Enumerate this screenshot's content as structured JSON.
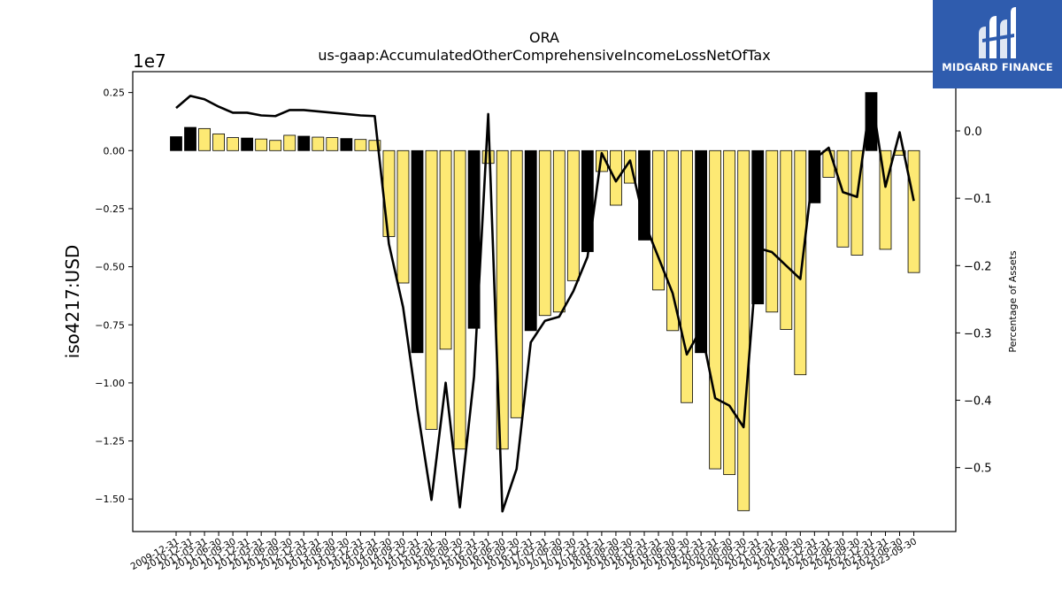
{
  "brand": {
    "name": "MIDGARD FINANCE"
  },
  "colors": {
    "bar_yellow": "#fde974",
    "bar_black": "#000000",
    "line": "#000000",
    "brand_blue": "#2f5cae"
  },
  "chart_data": {
    "type": "bar",
    "title": "ORA",
    "subtitle": "us-gaap:AccumulatedOtherComprehensiveIncomeLossNetOfTax",
    "ylabel": "iso4217:USD",
    "y2label": "Percentage of Assets",
    "y_scale_label": "1e7",
    "ylim": [
      -1.64,
      0.34
    ],
    "y2lim": [
      -0.595,
      0.088
    ],
    "yticks": [
      0.25,
      0.0,
      -0.25,
      -0.5,
      -0.75,
      -1.0,
      -1.25,
      -1.5
    ],
    "ytick_labels": [
      "0.25",
      "0.00",
      "−0.25",
      "−0.50",
      "−0.75",
      "−1.00",
      "−1.25",
      "−1.50"
    ],
    "y2ticks": [
      0.0,
      -0.1,
      -0.2,
      -0.3,
      -0.4,
      -0.5
    ],
    "y2tick_labels": [
      "0.0",
      "−0.1",
      "−0.2",
      "−0.3",
      "−0.4",
      "−0.5"
    ],
    "categories": [
      "2009-12-31",
      "2010-12-31",
      "2011-03-31",
      "2011-06-30",
      "2011-09-30",
      "2011-12-31",
      "2012-03-31",
      "2012-06-30",
      "2012-09-30",
      "2012-12-31",
      "2013-03-31",
      "2013-06-30",
      "2013-09-30",
      "2013-12-31",
      "2014-03-31",
      "2014-06-30",
      "2014-09-30",
      "2014-12-31",
      "2015-03-31",
      "2015-06-30",
      "2015-09-30",
      "2015-12-31",
      "2016-03-31",
      "2016-06-30",
      "2016-09-30",
      "2016-12-31",
      "2017-03-31",
      "2017-06-30",
      "2017-09-30",
      "2017-12-31",
      "2018-03-31",
      "2018-06-30",
      "2018-09-30",
      "2018-12-31",
      "2019-03-31",
      "2019-06-30",
      "2019-09-30",
      "2019-12-31",
      "2020-03-31",
      "2020-06-30",
      "2020-09-30",
      "2020-12-31",
      "2021-03-31",
      "2021-06-30",
      "2021-09-30",
      "2021-12-31",
      "2022-03-31",
      "2022-06-30",
      "2022-09-30",
      "2022-12-31",
      "2023-03-31",
      "2023-06-30",
      "2023-09-30"
    ],
    "xtick_labels": [
      "2009-12-31",
      "2010-12-31",
      "2011-03-31",
      "2011-06-30",
      "2011-09-30",
      "2011-12-31",
      "2012-03-31",
      "2012-06-30",
      "2012-09-30",
      "2012-12-31",
      "2013-03-31",
      "2013-06-30",
      "2013-09-30",
      "2013-12-31",
      "2014-03-31",
      "2014-06-30",
      "2014-09-30",
      "2014-12-31",
      "2015-03-31",
      "2015-06-30",
      "2015-09-30",
      "2015-12-31",
      "2016-03-31",
      "2016-06-30",
      "2016-09-30",
      "2016-12-31",
      "2017-03-31",
      "2017-06-30",
      "2017-09-30",
      "2017-12-31",
      "2018-03-31",
      "2018-06-30",
      "2018-09-30",
      "2018-12-31",
      "2019-03-31",
      "2019-06-30",
      "2019-09-30",
      "2019-12-31",
      "2020-03-31",
      "2020-06-30",
      "2020-09-30",
      "2020-12-31",
      "2021-03-31",
      "2021-06-30",
      "2021-09-30",
      "2021-12-31",
      "2022-03-31",
      "2022-06-30",
      "2022-09-30",
      "2022-12-31",
      "2023-03-31",
      "2023-06-30",
      "2023-09-30"
    ],
    "series": [
      {
        "kind": "bar",
        "values": [
          0.06,
          0.1,
          0.095,
          0.072,
          0.056,
          0.054,
          0.05,
          0.044,
          0.066,
          0.062,
          0.058,
          0.056,
          0.052,
          0.048,
          0.044,
          -0.37,
          -0.57,
          -0.87,
          -1.2,
          -0.855,
          -1.285,
          -0.765,
          -0.055,
          -1.285,
          -1.15,
          -0.775,
          -0.71,
          -0.695,
          -0.56,
          -0.435,
          -0.09,
          -0.235,
          -0.14,
          -0.385,
          -0.6,
          -0.775,
          -1.085,
          -0.87,
          -1.37,
          -1.395,
          -1.55,
          -0.66,
          -0.695,
          -0.77,
          -0.965,
          -0.225,
          -0.115,
          -0.415,
          -0.45,
          0.25,
          -0.425,
          -0.02,
          -0.525
        ],
        "bar_color_keys": [
          "black",
          "black",
          "yellow",
          "yellow",
          "yellow",
          "black",
          "yellow",
          "yellow",
          "yellow",
          "black",
          "yellow",
          "yellow",
          "black",
          "yellow",
          "yellow",
          "yellow",
          "yellow",
          "black",
          "yellow",
          "yellow",
          "yellow",
          "black",
          "yellow",
          "yellow",
          "yellow",
          "black",
          "yellow",
          "yellow",
          "yellow",
          "black",
          "yellow",
          "yellow",
          "yellow",
          "black",
          "yellow",
          "yellow",
          "yellow",
          "black",
          "yellow",
          "yellow",
          "yellow",
          "black",
          "yellow",
          "yellow",
          "yellow",
          "black",
          "yellow",
          "yellow",
          "yellow",
          "black",
          "yellow",
          "yellow",
          "yellow"
        ]
      },
      {
        "kind": "line",
        "axis": "right",
        "values": [
          0.034,
          0.052,
          0.047,
          0.036,
          0.027,
          0.027,
          0.023,
          0.022,
          0.031,
          0.031,
          0.029,
          0.027,
          0.025,
          0.023,
          0.022,
          -0.168,
          -0.262,
          -0.412,
          -0.548,
          -0.374,
          -0.559,
          -0.365,
          0.025,
          -0.565,
          -0.502,
          -0.314,
          -0.282,
          -0.276,
          -0.238,
          -0.187,
          -0.033,
          -0.075,
          -0.044,
          -0.135,
          -0.188,
          -0.241,
          -0.332,
          -0.294,
          -0.397,
          -0.408,
          -0.44,
          -0.174,
          -0.18,
          -0.2,
          -0.22,
          -0.042,
          -0.025,
          -0.091,
          -0.098,
          0.055,
          -0.083,
          -0.002,
          -0.104
        ]
      }
    ],
    "grid": false,
    "legend": "none"
  }
}
